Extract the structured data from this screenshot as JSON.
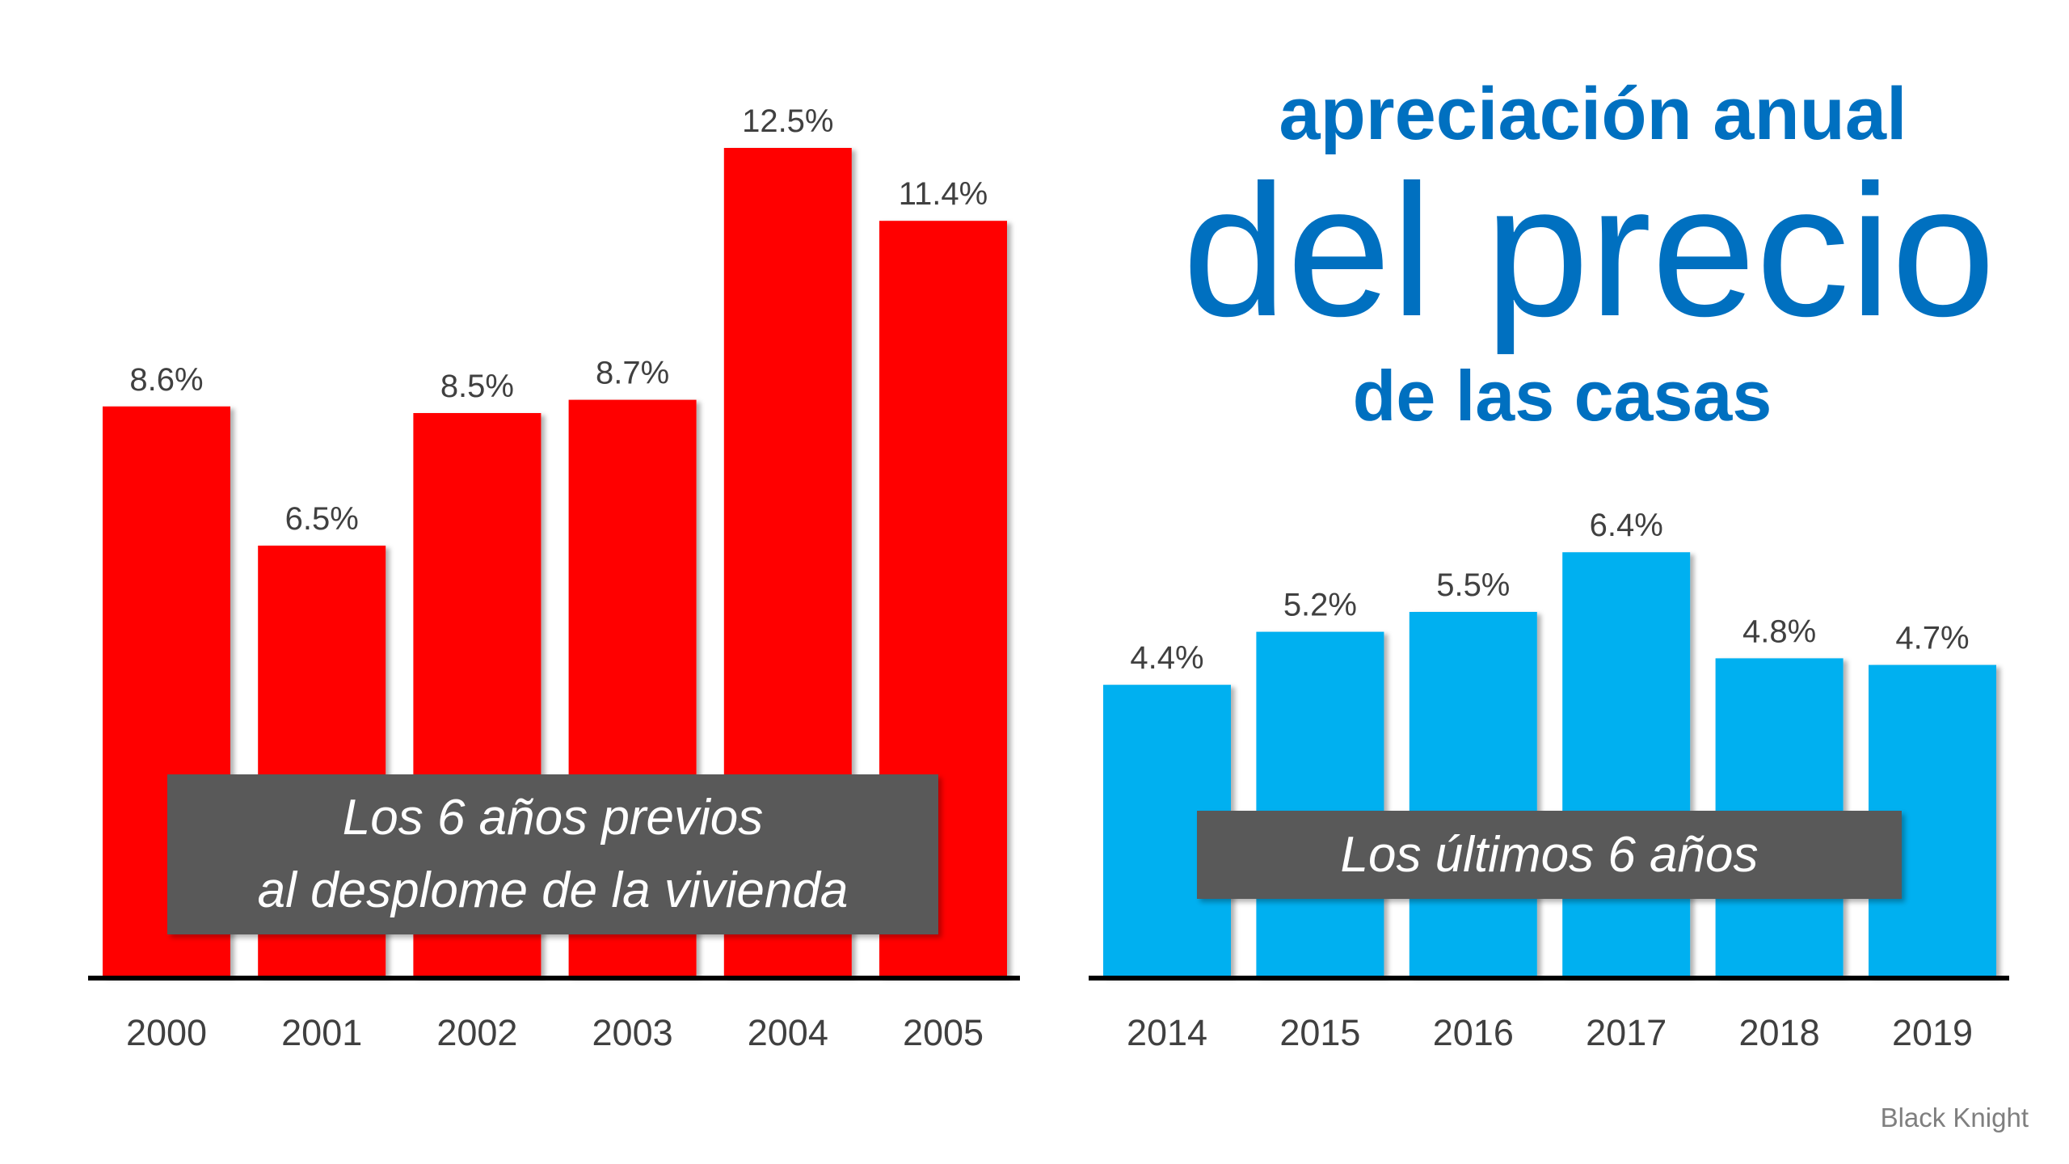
{
  "title": {
    "line1": "apreciación anual",
    "line2": "del precio",
    "line3": "de las casas",
    "color": "#0070C0"
  },
  "source": "Black Knight",
  "chart_data": [
    {
      "type": "bar",
      "categories": [
        "2000",
        "2001",
        "2002",
        "2003",
        "2004",
        "2005"
      ],
      "values": [
        8.6,
        6.5,
        8.5,
        8.7,
        12.5,
        11.4
      ],
      "data_labels": [
        "8.6%",
        "6.5%",
        "8.5%",
        "8.7%",
        "12.5%",
        "11.4%"
      ],
      "color": "#FF0000",
      "annotation": [
        "Los 6 años previos",
        "al desplome de la vivienda"
      ],
      "ylim": [
        0,
        13
      ],
      "grid": false
    },
    {
      "type": "bar",
      "categories": [
        "2014",
        "2015",
        "2016",
        "2017",
        "2018",
        "2019"
      ],
      "values": [
        4.4,
        5.2,
        5.5,
        6.4,
        4.8,
        4.7
      ],
      "data_labels": [
        "4.4%",
        "5.2%",
        "5.5%",
        "6.4%",
        "4.8%",
        "4.7%"
      ],
      "color": "#00B0F0",
      "annotation": [
        "Los últimos 6 años"
      ],
      "ylim": [
        0,
        13
      ],
      "grid": false
    }
  ]
}
